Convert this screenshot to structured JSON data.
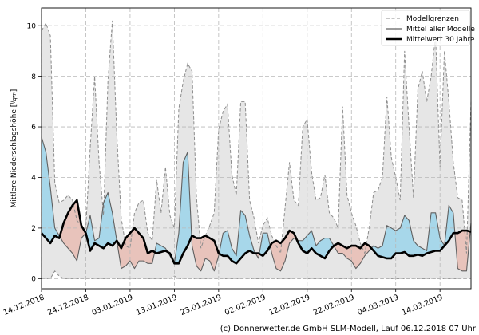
{
  "chart_data": {
    "type": "area",
    "title": "",
    "xlabel": "",
    "ylabel": "Mittlere Niederschlagshöhe [l/(qm)]",
    "ylabel_unit_parts": [
      "Mittlere Niederschlagshöhe [",
      "l",
      "/",
      "qm",
      "]"
    ],
    "ylim": [
      -0.4,
      10.7
    ],
    "yticks": [
      0,
      2,
      4,
      6,
      8,
      10
    ],
    "xlim": [
      0,
      97
    ],
    "x_start_label": "14.12.2018",
    "xticks": [
      {
        "day": 0,
        "label": "14.12.2018"
      },
      {
        "day": 10,
        "label": "24.12.2018"
      },
      {
        "day": 20,
        "label": "03.01.2019"
      },
      {
        "day": 30,
        "label": "13.01.2019"
      },
      {
        "day": 40,
        "label": "23.01.2019"
      },
      {
        "day": 50,
        "label": "02.02.2019"
      },
      {
        "day": 60,
        "label": "12.02.2019"
      },
      {
        "day": 70,
        "label": "22.02.2019"
      },
      {
        "day": 80,
        "label": "04.03.2019"
      },
      {
        "day": 90,
        "label": "14.03.2019"
      }
    ],
    "grid": true,
    "legend_position": "top-right",
    "series": [
      {
        "name": "Modellgrenzen",
        "kind": "band",
        "x": [
          0,
          1,
          2,
          3,
          4,
          5,
          6,
          7,
          8,
          9,
          10,
          11,
          12,
          13,
          14,
          15,
          16,
          17,
          18,
          19,
          20,
          21,
          22,
          23,
          24,
          25,
          26,
          27,
          28,
          29,
          30,
          31,
          32,
          33,
          34,
          35,
          36,
          37,
          38,
          39,
          40,
          41,
          42,
          43,
          44,
          45,
          46,
          47,
          48,
          49,
          50,
          51,
          52,
          53,
          54,
          55,
          56,
          57,
          58,
          59,
          60,
          61,
          62,
          63,
          64,
          65,
          66,
          67,
          68,
          69,
          70,
          71,
          72,
          73,
          74,
          75,
          76,
          77,
          78,
          79,
          80,
          81,
          82,
          83,
          84,
          85,
          86,
          87,
          88,
          89,
          90,
          91,
          92,
          93,
          94,
          95,
          96,
          97
        ],
        "upper": [
          9.8,
          10.1,
          9.6,
          3.8,
          3.0,
          3.1,
          3.3,
          3.1,
          2.3,
          2.1,
          2.0,
          5.2,
          8.0,
          4.6,
          2.5,
          7.8,
          10.2,
          5.7,
          2.4,
          1.3,
          1.2,
          2.6,
          3.0,
          3.1,
          1.8,
          1.5,
          3.9,
          2.6,
          4.4,
          2.5,
          2.0,
          6.7,
          7.8,
          8.5,
          8.2,
          3.2,
          1.2,
          1.7,
          2.1,
          2.6,
          5.9,
          6.6,
          6.9,
          4.1,
          3.3,
          7.0,
          7.0,
          3.1,
          2.4,
          1.4,
          2.1,
          2.4,
          1.7,
          1.3,
          1.0,
          2.8,
          4.6,
          3.1,
          2.9,
          6.0,
          6.3,
          4.2,
          3.1,
          3.2,
          4.1,
          2.6,
          2.4,
          2.0,
          6.8,
          3.3,
          2.6,
          2.1,
          1.4,
          1.0,
          2.0,
          3.4,
          3.5,
          4.0,
          7.2,
          4.8,
          4.0,
          3.1,
          9.0,
          6.0,
          3.2,
          7.5,
          8.2,
          7.0,
          8.0,
          9.6,
          4.4,
          9.0,
          7.0,
          4.6,
          3.2,
          3.1,
          1.0,
          7.0
        ],
        "lower": [
          0.0,
          0.0,
          0.0,
          0.3,
          0.1,
          0.0,
          0.0,
          0.0,
          0.0,
          0.0,
          0.0,
          0.0,
          0.0,
          0.0,
          0.0,
          0.0,
          0.0,
          0.0,
          0.0,
          0.0,
          0.0,
          0.0,
          0.0,
          0.0,
          0.0,
          0.0,
          0.0,
          0.0,
          0.0,
          0.0,
          0.1,
          0.0,
          0.0,
          0.0,
          0.0,
          0.0,
          0.0,
          0.0,
          0.0,
          0.0,
          0.0,
          0.0,
          0.0,
          0.0,
          0.0,
          0.0,
          0.0,
          0.0,
          0.0,
          0.0,
          0.0,
          0.0,
          0.0,
          0.0,
          0.0,
          0.0,
          0.0,
          0.0,
          0.0,
          0.0,
          0.0,
          0.0,
          0.0,
          0.0,
          0.0,
          0.0,
          0.0,
          0.0,
          0.0,
          0.0,
          0.0,
          0.0,
          0.0,
          0.0,
          0.0,
          0.0,
          0.0,
          0.0,
          0.0,
          0.0,
          0.0,
          0.0,
          0.0,
          0.0,
          0.0,
          0.0,
          0.0,
          0.0,
          0.0,
          0.0,
          0.0,
          0.0,
          0.0,
          0.0,
          0.0,
          0.0,
          0.0,
          0.0
        ],
        "color": "#e6e6e6",
        "edge_color": "#8c8c8c"
      },
      {
        "name": "Mittel aller Modelle",
        "kind": "line",
        "x": [
          0,
          1,
          2,
          3,
          4,
          5,
          6,
          7,
          8,
          9,
          10,
          11,
          12,
          13,
          14,
          15,
          16,
          17,
          18,
          19,
          20,
          21,
          22,
          23,
          24,
          25,
          26,
          27,
          28,
          29,
          30,
          31,
          32,
          33,
          34,
          35,
          36,
          37,
          38,
          39,
          40,
          41,
          42,
          43,
          44,
          45,
          46,
          47,
          48,
          49,
          50,
          51,
          52,
          53,
          54,
          55,
          56,
          57,
          58,
          59,
          60,
          61,
          62,
          63,
          64,
          65,
          66,
          67,
          68,
          69,
          70,
          71,
          72,
          73,
          74,
          75,
          76,
          77,
          78,
          79,
          80,
          81,
          82,
          83,
          84,
          85,
          86,
          87,
          88,
          89,
          90,
          91,
          92,
          93,
          94,
          95,
          96,
          97
        ],
        "values": [
          5.6,
          5.0,
          3.6,
          2.0,
          1.7,
          1.4,
          1.2,
          1.0,
          0.7,
          1.6,
          1.8,
          2.5,
          1.5,
          1.6,
          3.0,
          3.4,
          2.6,
          1.5,
          0.4,
          0.5,
          0.7,
          0.4,
          0.7,
          0.7,
          0.6,
          0.6,
          1.4,
          1.3,
          1.2,
          0.9,
          0.6,
          1.8,
          4.6,
          5.0,
          1.3,
          0.5,
          0.3,
          0.8,
          0.7,
          0.3,
          0.9,
          1.8,
          1.9,
          1.2,
          0.9,
          2.7,
          2.5,
          1.7,
          1.1,
          0.8,
          1.8,
          1.8,
          1.0,
          0.4,
          0.3,
          0.7,
          1.4,
          1.6,
          1.5,
          1.5,
          1.7,
          1.9,
          1.3,
          1.5,
          1.6,
          1.6,
          1.3,
          1.0,
          1.0,
          0.8,
          0.7,
          0.4,
          0.6,
          0.9,
          1.1,
          1.3,
          1.2,
          1.3,
          2.1,
          2.0,
          1.9,
          2.0,
          2.5,
          2.3,
          1.5,
          1.3,
          1.2,
          1.1,
          2.6,
          2.6,
          1.6,
          1.3,
          2.9,
          2.6,
          0.4,
          0.3,
          0.3,
          2.2
        ],
        "color": "#606060"
      },
      {
        "name": "Mittelwert 30 Jahre",
        "kind": "line",
        "x": [
          0,
          1,
          2,
          3,
          4,
          5,
          6,
          7,
          8,
          9,
          10,
          11,
          12,
          13,
          14,
          15,
          16,
          17,
          18,
          19,
          20,
          21,
          22,
          23,
          24,
          25,
          26,
          27,
          28,
          29,
          30,
          31,
          32,
          33,
          34,
          35,
          36,
          37,
          38,
          39,
          40,
          41,
          42,
          43,
          44,
          45,
          46,
          47,
          48,
          49,
          50,
          51,
          52,
          53,
          54,
          55,
          56,
          57,
          58,
          59,
          60,
          61,
          62,
          63,
          64,
          65,
          66,
          67,
          68,
          69,
          70,
          71,
          72,
          73,
          74,
          75,
          76,
          77,
          78,
          79,
          80,
          81,
          82,
          83,
          84,
          85,
          86,
          87,
          88,
          89,
          90,
          91,
          92,
          93,
          94,
          95,
          96,
          97
        ],
        "values": [
          1.8,
          1.6,
          1.4,
          1.7,
          1.6,
          2.2,
          2.6,
          2.9,
          3.1,
          2.1,
          1.8,
          1.1,
          1.4,
          1.3,
          1.2,
          1.4,
          1.3,
          1.5,
          1.2,
          1.6,
          1.8,
          2.0,
          1.8,
          1.6,
          1.0,
          1.1,
          1.0,
          1.05,
          1.1,
          1.0,
          0.6,
          0.6,
          1.0,
          1.3,
          1.7,
          1.6,
          1.6,
          1.7,
          1.6,
          1.5,
          1.0,
          0.9,
          0.9,
          0.7,
          0.6,
          0.8,
          1.0,
          1.1,
          1.0,
          1.0,
          0.9,
          1.1,
          1.4,
          1.5,
          1.4,
          1.6,
          1.9,
          1.8,
          1.4,
          1.1,
          1.0,
          1.2,
          1.0,
          0.9,
          0.8,
          1.1,
          1.3,
          1.4,
          1.3,
          1.2,
          1.3,
          1.3,
          1.2,
          1.4,
          1.3,
          1.1,
          0.9,
          0.85,
          0.8,
          0.8,
          1.0,
          1.0,
          1.05,
          0.9,
          0.9,
          0.95,
          0.9,
          1.0,
          1.05,
          1.1,
          1.1,
          1.3,
          1.5,
          1.8,
          1.8,
          1.9,
          1.9,
          1.85
        ],
        "color": "#000000"
      }
    ],
    "fill_above_color": "#a7d7ea",
    "fill_below_color": "#e8c3bb"
  },
  "legend": {
    "items": [
      {
        "label": "Modellgrenzen",
        "style": "dashed"
      },
      {
        "label": "Mittel aller Modelle",
        "style": "thin"
      },
      {
        "label": "Mittelwert 30 Jahre",
        "style": "thick"
      }
    ]
  },
  "credit": "(c) Donnerwetter.de GmbH SLM-Modell, Lauf 06.12.2018 07 Uhr"
}
